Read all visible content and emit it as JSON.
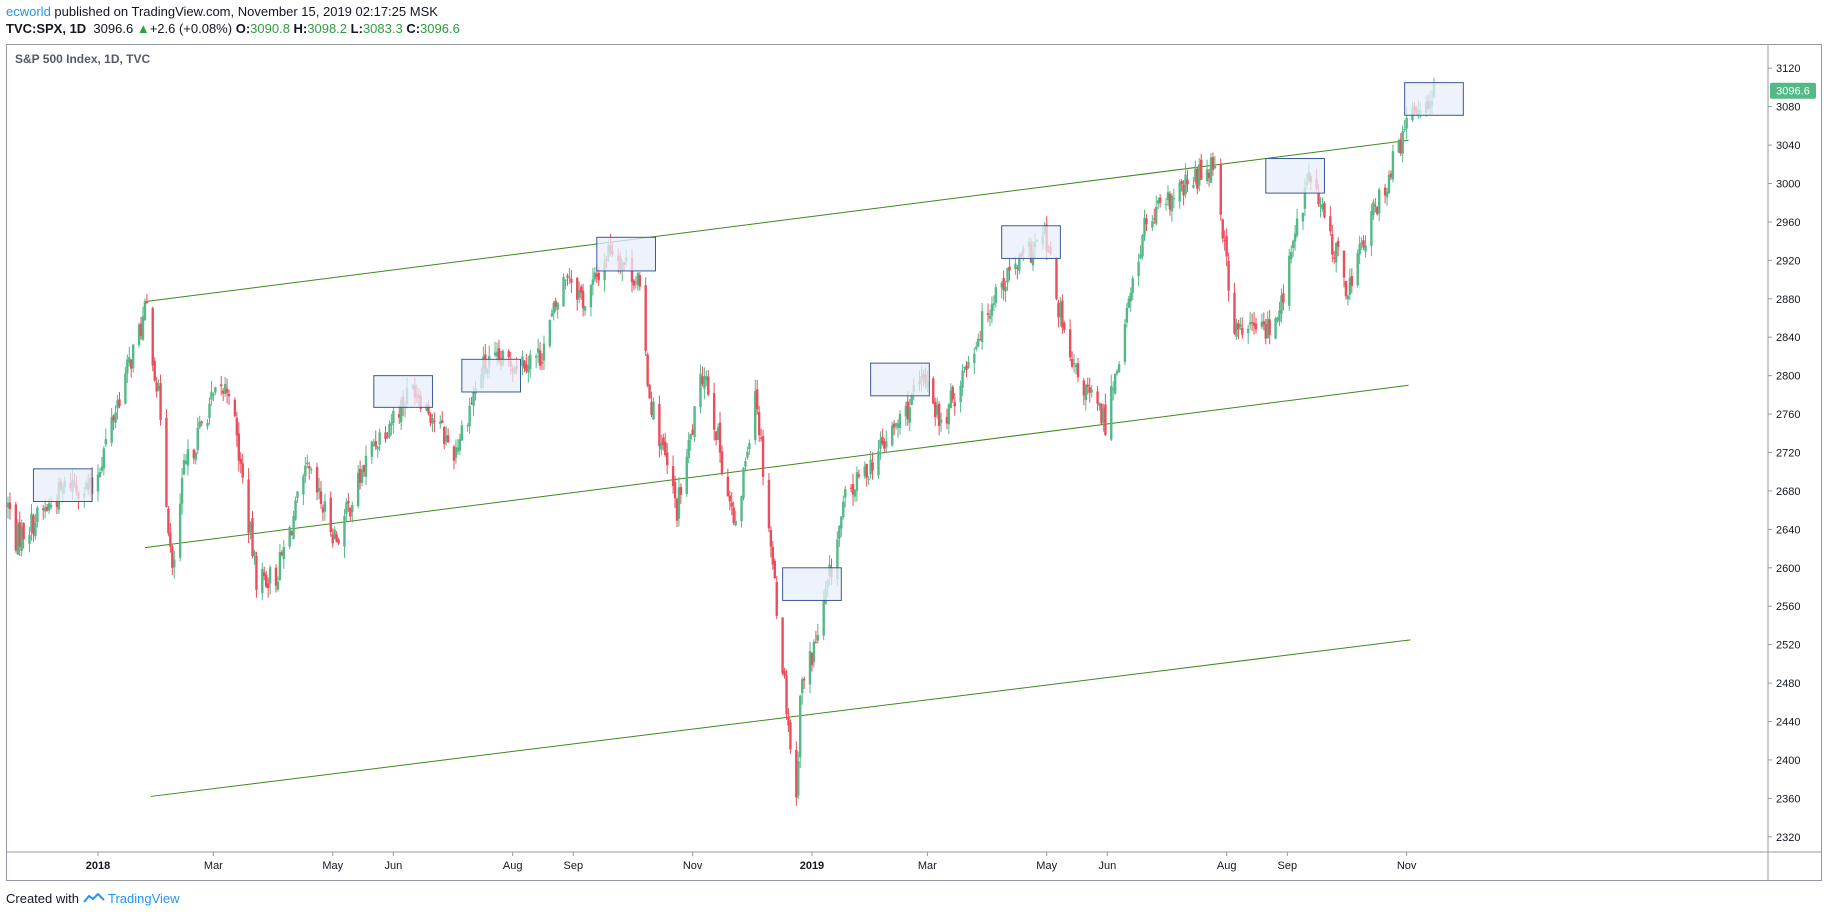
{
  "header": {
    "author": "ecworld",
    "published_text": " published on TradingView.com, November 15, 2019 02:17:25 MSK",
    "symbol": "TVC:SPX, 1D",
    "last": "3096.6",
    "change": "+2.6 (+0.08%)",
    "open_label": "O:",
    "open": "3090.8",
    "high_label": "H:",
    "high": "3098.2",
    "low_label": "L:",
    "low": "3083.3",
    "close_label": "C:",
    "close": "3096.6"
  },
  "footer": {
    "created_with": "Created with",
    "brand": "TradingView"
  },
  "colors": {
    "up": "#53b987",
    "down": "#eb4d5c",
    "trendline": "#3a8a1a",
    "box_fill": "#e8eef9",
    "box_stroke": "#3a5a9a",
    "price_tag": "#53b987"
  },
  "chart_data": {
    "type": "candlestick",
    "title": "S&P 500 Index, 1D, TVC",
    "last_price": "3096.6",
    "y_range": [
      2300,
      3140
    ],
    "y_ticks": [
      2320,
      2360,
      2400,
      2440,
      2480,
      2520,
      2560,
      2600,
      2640,
      2680,
      2720,
      2760,
      2800,
      2840,
      2880,
      2920,
      2960,
      3000,
      3040,
      3080,
      3120
    ],
    "x_range": [
      "2017-11-16",
      "2019-11-15"
    ],
    "x_ticks": [
      {
        "label": "2018",
        "date": "2018-01-01",
        "bold": true
      },
      {
        "label": "Mar",
        "date": "2018-03-01"
      },
      {
        "label": "May",
        "date": "2018-05-01"
      },
      {
        "label": "Jun",
        "date": "2018-06-01"
      },
      {
        "label": "Aug",
        "date": "2018-08-01"
      },
      {
        "label": "Sep",
        "date": "2018-09-01"
      },
      {
        "label": "Nov",
        "date": "2018-11-01"
      },
      {
        "label": "2019",
        "date": "2019-01-01",
        "bold": true
      },
      {
        "label": "Mar",
        "date": "2019-03-01"
      },
      {
        "label": "May",
        "date": "2019-05-01"
      },
      {
        "label": "Jun",
        "date": "2019-06-01"
      },
      {
        "label": "Aug",
        "date": "2019-08-01"
      },
      {
        "label": "Sep",
        "date": "2019-09-01"
      },
      {
        "label": "Nov",
        "date": "2019-11-01"
      }
    ],
    "anchors": [
      [
        "2017-11-16",
        2665
      ],
      [
        "2017-11-20",
        2630
      ],
      [
        "2017-12-05",
        2660
      ],
      [
        "2017-12-18",
        2690
      ],
      [
        "2017-12-29",
        2680
      ],
      [
        "2018-01-12",
        2780
      ],
      [
        "2018-01-26",
        2870
      ],
      [
        "2018-02-02",
        2760
      ],
      [
        "2018-02-08",
        2590
      ],
      [
        "2018-02-14",
        2700
      ],
      [
        "2018-02-27",
        2770
      ],
      [
        "2018-03-09",
        2790
      ],
      [
        "2018-03-23",
        2590
      ],
      [
        "2018-04-02",
        2590
      ],
      [
        "2018-04-18",
        2700
      ],
      [
        "2018-05-03",
        2630
      ],
      [
        "2018-05-22",
        2730
      ],
      [
        "2018-06-12",
        2790
      ],
      [
        "2018-07-02",
        2720
      ],
      [
        "2018-07-17",
        2810
      ],
      [
        "2018-08-15",
        2820
      ],
      [
        "2018-08-29",
        2910
      ],
      [
        "2018-09-07",
        2875
      ],
      [
        "2018-09-20",
        2935
      ],
      [
        "2018-10-04",
        2900
      ],
      [
        "2018-10-10",
        2780
      ],
      [
        "2018-10-24",
        2660
      ],
      [
        "2018-11-07",
        2810
      ],
      [
        "2018-11-23",
        2635
      ],
      [
        "2018-12-03",
        2790
      ],
      [
        "2018-12-24",
        2355
      ],
      [
        "2018-12-26",
        2470
      ],
      [
        "2019-01-04",
        2530
      ],
      [
        "2019-01-18",
        2670
      ],
      [
        "2019-02-14",
        2750
      ],
      [
        "2019-03-01",
        2800
      ],
      [
        "2019-03-08",
        2745
      ],
      [
        "2019-04-05",
        2890
      ],
      [
        "2019-04-30",
        2945
      ],
      [
        "2019-05-13",
        2810
      ],
      [
        "2019-05-31",
        2752
      ],
      [
        "2019-06-20",
        2955
      ],
      [
        "2019-07-26",
        3025
      ],
      [
        "2019-08-05",
        2845
      ],
      [
        "2019-08-15",
        2850
      ],
      [
        "2019-08-26",
        2850
      ],
      [
        "2019-09-12",
        3010
      ],
      [
        "2019-10-02",
        2890
      ],
      [
        "2019-10-10",
        2940
      ],
      [
        "2019-10-25",
        3020
      ],
      [
        "2019-11-04",
        3075
      ],
      [
        "2019-11-15",
        3096.6
      ]
    ],
    "trendlines": [
      {
        "start": [
          "2018-01-25",
          2877
        ],
        "end": [
          "2019-11-02",
          3045
        ]
      },
      {
        "start": [
          "2018-01-25",
          2621
        ],
        "end": [
          "2019-11-02",
          2790
        ]
      },
      {
        "start": [
          "2018-01-28",
          2362
        ],
        "end": [
          "2019-11-03",
          2525
        ]
      }
    ],
    "boxes": [
      {
        "start": "2017-11-29",
        "end": "2017-12-29",
        "top": 2703,
        "bottom": 2669
      },
      {
        "start": "2018-05-22",
        "end": "2018-06-21",
        "top": 2800,
        "bottom": 2767
      },
      {
        "start": "2018-07-06",
        "end": "2018-08-05",
        "top": 2817,
        "bottom": 2783
      },
      {
        "start": "2018-09-13",
        "end": "2018-10-13",
        "top": 2944,
        "bottom": 2909
      },
      {
        "start": "2018-12-17",
        "end": "2019-01-16",
        "top": 2600,
        "bottom": 2566
      },
      {
        "start": "2019-01-31",
        "end": "2019-03-02",
        "top": 2813,
        "bottom": 2779
      },
      {
        "start": "2019-04-08",
        "end": "2019-05-08",
        "top": 2956,
        "bottom": 2922
      },
      {
        "start": "2019-08-21",
        "end": "2019-09-20",
        "top": 3026,
        "bottom": 2990
      },
      {
        "start": "2019-10-31",
        "end": "2019-11-30",
        "top": 3105,
        "bottom": 3071
      }
    ]
  }
}
